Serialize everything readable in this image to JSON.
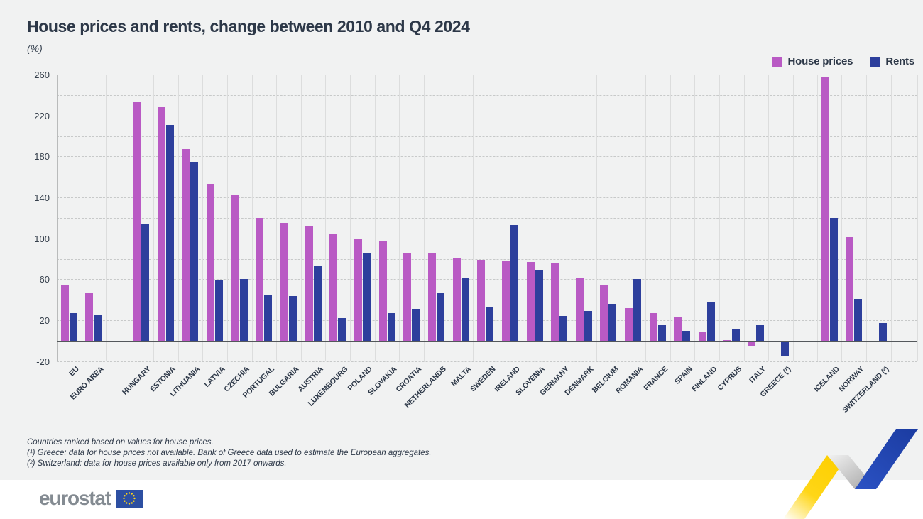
{
  "page": {
    "title": "House prices and rents, change between 2010 and Q4 2024",
    "unit_label": "(%)"
  },
  "notes": [
    "Countries ranked based on values for house prices.",
    "(¹) Greece: data for house prices not available. Bank of Greece data used to estimate the European aggregates.",
    "(²) Switzerland: data for house prices available only from 2017 onwards."
  ],
  "logo": {
    "text": "eurostat"
  },
  "colors": {
    "house_prices": "#b95ac4",
    "rents": "#2d3f9c",
    "text": "#2d3848",
    "background": "#f1f2f2",
    "zero_line": "#54585c",
    "ribbon_yellow": "#ffd617",
    "ribbon_blue": "#2b52c0",
    "flag_blue": "#2d4fa2",
    "star_yellow": "#ffd617"
  },
  "chart_data": {
    "type": "bar",
    "title": "House prices and rents, change between 2010 and Q4 2024",
    "ylabel": "(%)",
    "ylim": [
      -20,
      260
    ],
    "ytick_step": 20,
    "ytick_labels": [
      -20,
      20,
      60,
      100,
      140,
      180,
      220,
      260
    ],
    "grid": "horizontal-dashed with vertical category separators",
    "legend_position": "top-right",
    "categories": [
      "EU",
      "EURO AREA",
      "HUNGARY",
      "ESTONIA",
      "LITHUANIA",
      "LATVIA",
      "CZECHIA",
      "PORTUGAL",
      "BULGARIA",
      "AUSTRIA",
      "LUXEMBOURG",
      "POLAND",
      "SLOVAKIA",
      "CROATIA",
      "NETHERLANDS",
      "MALTA",
      "SWEDEN",
      "IRELAND",
      "SLOVENIA",
      "GERMANY",
      "DENMARK",
      "BELGIUM",
      "ROMANIA",
      "FRANCE",
      "SPAIN",
      "FINLAND",
      "CYPRUS",
      "ITALY",
      "GREECE (¹)",
      "ICELAND",
      "NORWAY",
      "SWITZERLAND (²)"
    ],
    "group_gaps_before_index": {
      "2": 32,
      "29": 34
    },
    "series": [
      {
        "name": "House prices",
        "color": "#b95ac4",
        "values": [
          55,
          47,
          234,
          228,
          187,
          153,
          142,
          120,
          115,
          112,
          105,
          100,
          97,
          86,
          85,
          81,
          79,
          78,
          77,
          76,
          61,
          55,
          32,
          27,
          23,
          8,
          1,
          -4,
          null,
          258,
          101,
          null
        ]
      },
      {
        "name": "Rents",
        "color": "#2d3f9c",
        "values": [
          27,
          25,
          114,
          211,
          175,
          59,
          60,
          45,
          44,
          73,
          22,
          86,
          27,
          31,
          47,
          62,
          33,
          113,
          69,
          24,
          29,
          36,
          60,
          15,
          10,
          38,
          11,
          15,
          -13,
          120,
          41,
          17
        ]
      }
    ]
  }
}
